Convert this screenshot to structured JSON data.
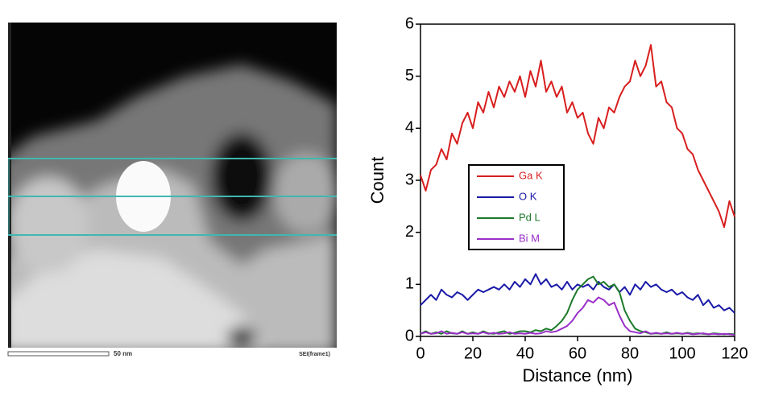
{
  "image": {
    "scale_label": "50 nm",
    "caption": "SEI(frame1)"
  },
  "chart_data": {
    "type": "line",
    "xlabel": "Distance (nm)",
    "ylabel": "Count",
    "x": [
      0,
      2,
      4,
      6,
      8,
      10,
      12,
      14,
      16,
      18,
      20,
      22,
      24,
      26,
      28,
      30,
      32,
      34,
      36,
      38,
      40,
      42,
      44,
      46,
      48,
      50,
      52,
      54,
      56,
      58,
      60,
      62,
      64,
      66,
      68,
      70,
      72,
      74,
      76,
      78,
      80,
      82,
      84,
      86,
      88,
      90,
      92,
      94,
      96,
      98,
      100,
      102,
      104,
      106,
      108,
      110,
      112,
      114,
      116,
      118,
      120
    ],
    "xlim": [
      0,
      120
    ],
    "xticks": [
      0,
      20,
      40,
      60,
      80,
      100,
      120
    ],
    "ylim": [
      0,
      6
    ],
    "yticks": [
      0,
      1,
      2,
      3,
      4,
      5,
      6
    ],
    "series": [
      {
        "name": "Ga K",
        "color": "#d81e1e",
        "values": [
          3.1,
          2.8,
          3.2,
          3.3,
          3.6,
          3.4,
          3.9,
          3.7,
          4.1,
          4.3,
          4.0,
          4.5,
          4.3,
          4.7,
          4.4,
          4.8,
          4.6,
          4.9,
          4.7,
          5.0,
          4.6,
          5.1,
          4.8,
          5.3,
          4.7,
          4.9,
          4.6,
          4.8,
          4.3,
          4.5,
          4.2,
          4.3,
          3.9,
          3.7,
          4.2,
          4.0,
          4.4,
          4.3,
          4.6,
          4.8,
          4.9,
          5.3,
          5.0,
          5.2,
          5.6,
          4.8,
          4.9,
          4.5,
          4.4,
          4.0,
          3.9,
          3.6,
          3.5,
          3.2,
          3.0,
          2.8,
          2.6,
          2.4,
          2.1,
          2.6,
          2.3
        ]
      },
      {
        "name": "O K",
        "color": "#1a1aa8",
        "values": [
          0.6,
          0.7,
          0.8,
          0.7,
          0.9,
          0.8,
          0.75,
          0.85,
          0.8,
          0.7,
          0.8,
          0.9,
          0.85,
          0.9,
          0.95,
          0.9,
          1.0,
          0.9,
          1.05,
          0.95,
          1.1,
          1.0,
          1.2,
          1.0,
          1.1,
          0.95,
          1.0,
          0.9,
          1.05,
          0.9,
          1.0,
          0.95,
          1.0,
          0.9,
          1.05,
          0.95,
          0.9,
          1.0,
          0.85,
          0.95,
          0.8,
          1.0,
          0.9,
          1.05,
          0.95,
          1.0,
          0.9,
          0.85,
          0.9,
          0.8,
          0.85,
          0.75,
          0.7,
          0.8,
          0.6,
          0.7,
          0.55,
          0.6,
          0.5,
          0.55,
          0.45
        ]
      },
      {
        "name": "Pd L",
        "color": "#1c7a2a",
        "values": [
          0.05,
          0.1,
          0.05,
          0.08,
          0.05,
          0.1,
          0.06,
          0.05,
          0.1,
          0.05,
          0.08,
          0.05,
          0.1,
          0.06,
          0.05,
          0.08,
          0.1,
          0.05,
          0.07,
          0.1,
          0.1,
          0.08,
          0.12,
          0.1,
          0.15,
          0.12,
          0.2,
          0.3,
          0.45,
          0.7,
          0.9,
          1.0,
          1.1,
          1.15,
          1.0,
          1.05,
          0.95,
          1.0,
          0.85,
          0.5,
          0.3,
          0.15,
          0.1,
          0.08,
          0.05,
          0.06,
          0.05,
          0.08,
          0.05,
          0.06,
          0.05,
          0.07,
          0.05,
          0.06,
          0.05,
          0.04,
          0.06,
          0.05,
          0.04,
          0.05,
          0.04
        ]
      },
      {
        "name": "Bi M",
        "color": "#9b2fc9",
        "values": [
          0.05,
          0.08,
          0.05,
          0.06,
          0.1,
          0.05,
          0.07,
          0.05,
          0.08,
          0.05,
          0.06,
          0.05,
          0.08,
          0.05,
          0.07,
          0.05,
          0.06,
          0.08,
          0.05,
          0.06,
          0.05,
          0.07,
          0.05,
          0.06,
          0.1,
          0.08,
          0.1,
          0.15,
          0.2,
          0.3,
          0.45,
          0.55,
          0.7,
          0.65,
          0.75,
          0.7,
          0.6,
          0.65,
          0.4,
          0.2,
          0.1,
          0.08,
          0.06,
          0.1,
          0.05,
          0.07,
          0.05,
          0.06,
          0.05,
          0.07,
          0.05,
          0.06,
          0.04,
          0.05,
          0.06,
          0.04,
          0.05,
          0.04,
          0.05,
          0.04,
          0.03
        ]
      }
    ]
  }
}
